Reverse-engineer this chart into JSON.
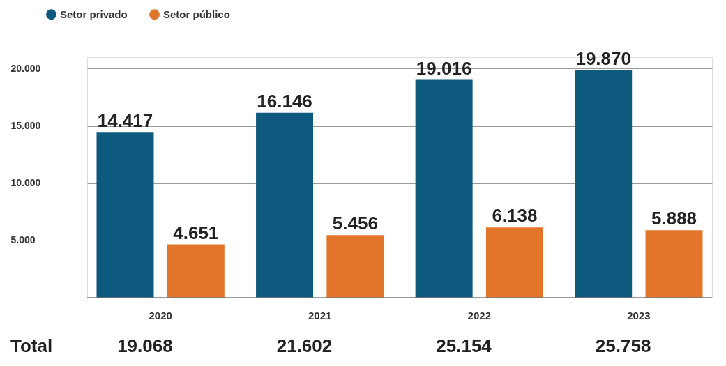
{
  "chart_data": {
    "type": "bar",
    "categories": [
      "2020",
      "2021",
      "2022",
      "2023"
    ],
    "series": [
      {
        "name": "Setor privado",
        "color": "#0d5a7e",
        "values": [
          14417,
          16146,
          19016,
          19870
        ],
        "value_labels": [
          "14.417",
          "16.146",
          "19.016",
          "19.870"
        ]
      },
      {
        "name": "Setor público",
        "color": "#e2752a",
        "values": [
          4651,
          5456,
          6138,
          5888
        ],
        "value_labels": [
          "4.651",
          "5.456",
          "6.138",
          "5.888"
        ]
      }
    ],
    "ylim": [
      0,
      21000
    ],
    "yticks": [
      {
        "value": 5000,
        "label": "5.000"
      },
      {
        "value": 10000,
        "label": "10.000"
      },
      {
        "value": 15000,
        "label": "15.000"
      },
      {
        "value": 20000,
        "label": "20.000"
      }
    ],
    "grid": "y",
    "legend": "top left",
    "annotations": [
      "Total",
      "19.068",
      "21.602",
      "25.154",
      "25.758"
    ]
  }
}
